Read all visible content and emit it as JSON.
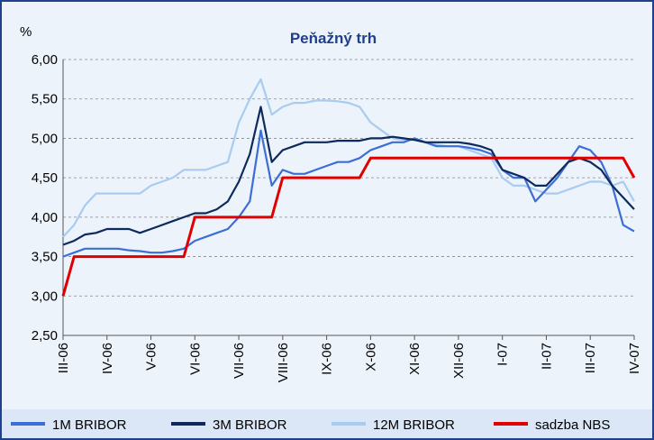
{
  "chart_data": {
    "type": "line",
    "title": "Peňažný trh",
    "y_label": "%",
    "categories": [
      "III-06",
      null,
      null,
      null,
      "IV-06",
      null,
      null,
      null,
      "V-06",
      null,
      null,
      null,
      "VI-06",
      null,
      null,
      null,
      "VII-06",
      null,
      null,
      null,
      "VIII-06",
      null,
      null,
      null,
      "IX-06",
      null,
      null,
      null,
      "X-06",
      null,
      null,
      null,
      "XI-06",
      null,
      null,
      null,
      "XII-06",
      null,
      null,
      null,
      "I-07",
      null,
      null,
      null,
      "II-07",
      null,
      null,
      null,
      "III-07",
      null,
      null,
      null,
      "IV-07"
    ],
    "series": [
      {
        "name": "1M BRIBOR",
        "color": "#3b6fd6",
        "values": [
          3.5,
          3.55,
          3.6,
          3.6,
          3.6,
          3.6,
          3.58,
          3.57,
          3.55,
          3.55,
          3.57,
          3.6,
          3.7,
          3.75,
          3.8,
          3.85,
          4.0,
          4.2,
          5.1,
          4.4,
          4.6,
          4.55,
          4.55,
          4.6,
          4.65,
          4.7,
          4.7,
          4.75,
          4.85,
          4.9,
          4.95,
          4.95,
          5.0,
          4.95,
          4.9,
          4.9,
          4.9,
          4.88,
          4.85,
          4.8,
          4.6,
          4.5,
          4.5,
          4.2,
          4.35,
          4.5,
          4.7,
          4.9,
          4.85,
          4.7,
          4.4,
          3.9,
          3.82
        ]
      },
      {
        "name": "3M BRIBOR",
        "color": "#0d2a5c",
        "values": [
          3.65,
          3.7,
          3.78,
          3.8,
          3.85,
          3.85,
          3.85,
          3.8,
          3.85,
          3.9,
          3.95,
          4.0,
          4.05,
          4.05,
          4.1,
          4.2,
          4.45,
          4.8,
          5.4,
          4.7,
          4.85,
          4.9,
          4.95,
          4.95,
          4.95,
          4.97,
          4.97,
          4.97,
          5.0,
          5.0,
          5.02,
          5.0,
          4.98,
          4.95,
          4.95,
          4.95,
          4.95,
          4.93,
          4.9,
          4.85,
          4.6,
          4.55,
          4.5,
          4.4,
          4.4,
          4.55,
          4.7,
          4.75,
          4.7,
          4.6,
          4.4,
          4.25,
          4.1
        ]
      },
      {
        "name": "12M BRIBOR",
        "color": "#a8ccf0",
        "values": [
          3.75,
          3.9,
          4.15,
          4.3,
          4.3,
          4.3,
          4.3,
          4.3,
          4.4,
          4.45,
          4.5,
          4.6,
          4.6,
          4.6,
          4.65,
          4.7,
          5.2,
          5.5,
          5.75,
          5.3,
          5.4,
          5.45,
          5.45,
          5.48,
          5.48,
          5.47,
          5.45,
          5.4,
          5.2,
          5.1,
          5.0,
          4.98,
          4.98,
          4.95,
          4.92,
          4.9,
          4.9,
          4.85,
          4.8,
          4.75,
          4.5,
          4.4,
          4.4,
          4.35,
          4.3,
          4.3,
          4.35,
          4.4,
          4.45,
          4.45,
          4.4,
          4.45,
          4.2
        ]
      },
      {
        "name": "sadzba NBS",
        "color": "#e00000",
        "values": [
          3.0,
          3.5,
          3.5,
          3.5,
          3.5,
          3.5,
          3.5,
          3.5,
          3.5,
          3.5,
          3.5,
          3.5,
          4.0,
          4.0,
          4.0,
          4.0,
          4.0,
          4.0,
          4.0,
          4.0,
          4.5,
          4.5,
          4.5,
          4.5,
          4.5,
          4.5,
          4.5,
          4.5,
          4.75,
          4.75,
          4.75,
          4.75,
          4.75,
          4.75,
          4.75,
          4.75,
          4.75,
          4.75,
          4.75,
          4.75,
          4.75,
          4.75,
          4.75,
          4.75,
          4.75,
          4.75,
          4.75,
          4.75,
          4.75,
          4.75,
          4.75,
          4.75,
          4.5
        ]
      }
    ],
    "ylim": [
      2.5,
      6.0
    ],
    "yticks": [
      {
        "value": 2.5,
        "label": "2,50"
      },
      {
        "value": 3.0,
        "label": "3,00"
      },
      {
        "value": 3.5,
        "label": "3,50"
      },
      {
        "value": 4.0,
        "label": "4,00"
      },
      {
        "value": 4.5,
        "label": "4,50"
      },
      {
        "value": 5.0,
        "label": "5,00"
      },
      {
        "value": 5.5,
        "label": "5,50"
      },
      {
        "value": 6.0,
        "label": "6,00"
      }
    ],
    "grid": true,
    "legend": "bottom"
  }
}
